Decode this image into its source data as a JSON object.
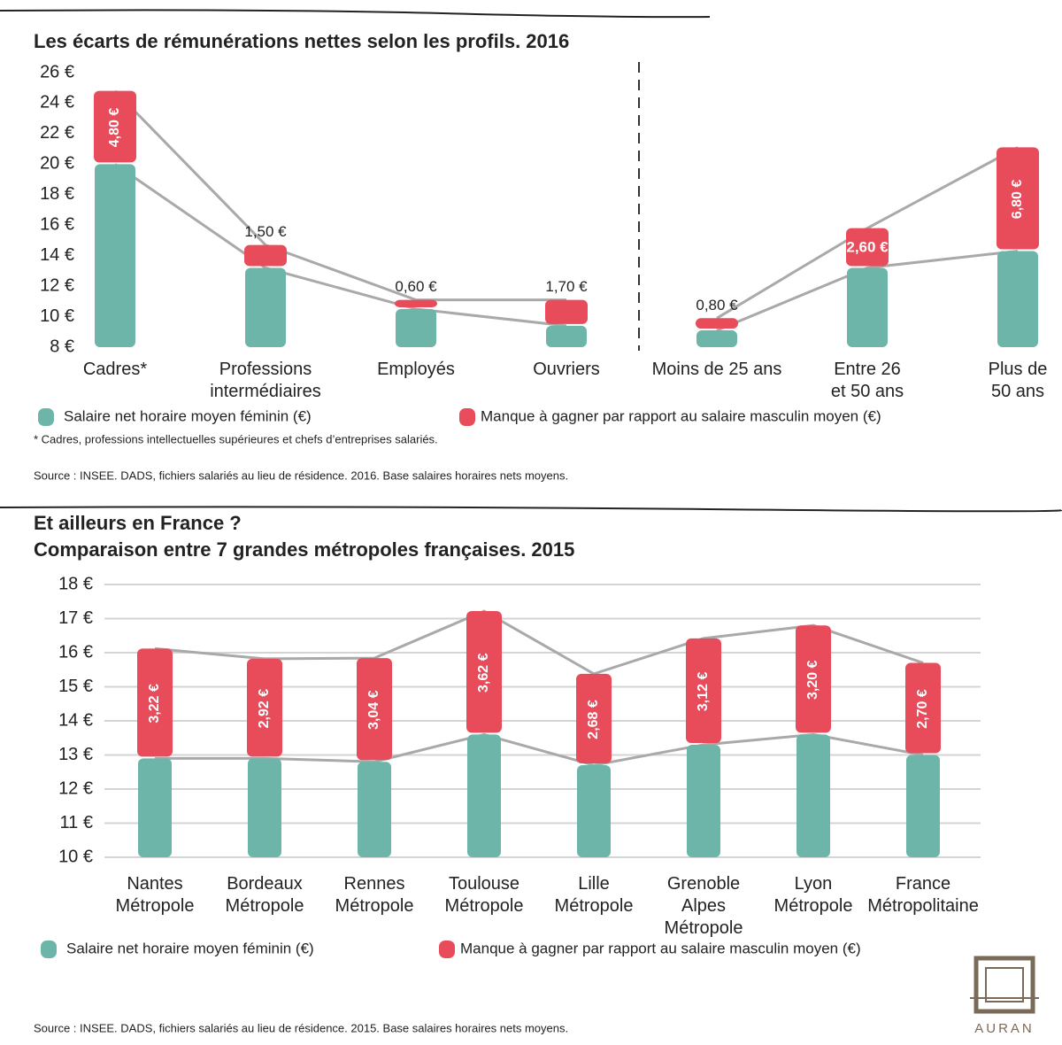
{
  "chart_data": [
    {
      "type": "bar",
      "title": "Les écarts de rémunérations nettes selon les profils. 2016",
      "categories": [
        [
          "Cadres*"
        ],
        [
          "Professions",
          "intermédiaires"
        ],
        [
          "Employés"
        ],
        [
          "Ouvriers"
        ],
        [
          "Moins de 25 ans"
        ],
        [
          "Entre 26",
          "et 50 ans"
        ],
        [
          "Plus de",
          "50 ans"
        ]
      ],
      "series": [
        {
          "name": "Salaire net horaire moyen féminin (€)",
          "color": "#6db5a8",
          "values": [
            20.0,
            13.2,
            10.5,
            9.4,
            9.1,
            13.2,
            14.3
          ]
        },
        {
          "name": "Manque à gagner par rapport au salaire masculin moyen (€)",
          "color": "#e84b5a",
          "values": [
            4.8,
            1.5,
            0.6,
            1.7,
            0.8,
            2.6,
            6.8
          ],
          "value_labels": [
            "4,80 €",
            "1,50 €",
            "0,60 €",
            "1,70 €",
            "0,80 €",
            "2,60 €",
            "6,80 €"
          ]
        }
      ],
      "ylim": [
        8,
        26
      ],
      "yticks": [
        {
          "value": 8,
          "label": "8 €"
        },
        {
          "value": 10,
          "label": "10 €"
        },
        {
          "value": 12,
          "label": "12 €"
        },
        {
          "value": 14,
          "label": "14 €"
        },
        {
          "value": 16,
          "label": "16 €"
        },
        {
          "value": 18,
          "label": "18 €"
        },
        {
          "value": 20,
          "label": "20 €"
        },
        {
          "value": 22,
          "label": "22 €"
        },
        {
          "value": 24,
          "label": "24 €"
        },
        {
          "value": 26,
          "label": "26 €"
        }
      ],
      "grid": false,
      "note": "* Cadres, professions intellectuelles supérieures et chefs d’entreprises salariés.",
      "source": "Source : INSEE. DADS, fichiers salariés au lieu de résidence. 2016. Base salaires horaires nets moyens."
    },
    {
      "type": "bar",
      "title": "Et ailleurs en France ?",
      "subtitle": "Comparaison entre 7 grandes métropoles françaises. 2015",
      "categories": [
        [
          "Nantes",
          "Métropole"
        ],
        [
          "Bordeaux",
          "Métropole"
        ],
        [
          "Rennes",
          "Métropole"
        ],
        [
          "Toulouse",
          "Métropole"
        ],
        [
          "Lille",
          "Métropole"
        ],
        [
          "Grenoble",
          "Alpes",
          "Métropole"
        ],
        [
          "Lyon",
          "Métropole"
        ],
        [
          "France",
          "Métropolitaine"
        ]
      ],
      "series": [
        {
          "name": "Salaire net horaire moyen féminin (€)",
          "color": "#6db5a8",
          "values": [
            12.9,
            12.9,
            12.8,
            13.6,
            12.7,
            13.3,
            13.6,
            13.0
          ]
        },
        {
          "name": "Manque à gagner par rapport au salaire masculin moyen (€)",
          "color": "#e84b5a",
          "values": [
            3.22,
            2.92,
            3.04,
            3.62,
            2.68,
            3.12,
            3.2,
            2.7
          ],
          "value_labels": [
            "3,22 €",
            "2,92 €",
            "3,04 €",
            "3,62 €",
            "2,68 €",
            "3,12 €",
            "3,20 €",
            "2,70 €"
          ]
        }
      ],
      "ylim": [
        10,
        18
      ],
      "yticks": [
        {
          "value": 10,
          "label": "10 €"
        },
        {
          "value": 11,
          "label": "11 €"
        },
        {
          "value": 12,
          "label": "12 €"
        },
        {
          "value": 13,
          "label": "13 €"
        },
        {
          "value": 14,
          "label": "14 €"
        },
        {
          "value": 15,
          "label": "15 €"
        },
        {
          "value": 16,
          "label": "16 €"
        },
        {
          "value": 17,
          "label": "17 €"
        },
        {
          "value": 18,
          "label": "18 €"
        }
      ],
      "grid": true,
      "source": "Source : INSEE. DADS, fichiers salariés au lieu de résidence. 2015. Base salaires horaires nets moyens."
    }
  ],
  "logo": "AURAN"
}
